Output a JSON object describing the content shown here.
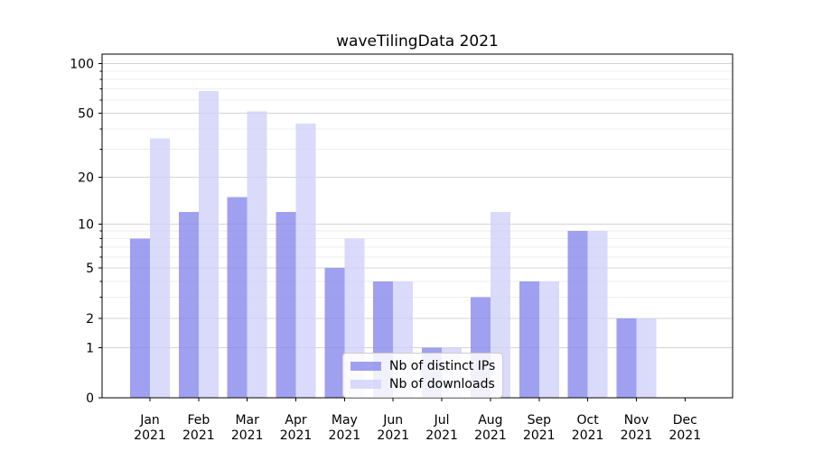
{
  "title": "waveTilingData 2021",
  "chart_data": {
    "type": "bar",
    "title": "waveTilingData 2021",
    "xlabel": "",
    "ylabel": "",
    "y_scale": "log1p",
    "ylim": [
      0,
      114
    ],
    "y_ticks": [
      0,
      1,
      2,
      5,
      10,
      20,
      50,
      100
    ],
    "y_minor_ticks": [
      3,
      4,
      6,
      7,
      8,
      9,
      30,
      40,
      60,
      70,
      80,
      90
    ],
    "grid": "horizontal major and minor gridlines",
    "legend_position": "lower center inside plot",
    "categories": [
      {
        "month": "Jan",
        "year": "2021"
      },
      {
        "month": "Feb",
        "year": "2021"
      },
      {
        "month": "Mar",
        "year": "2021"
      },
      {
        "month": "Apr",
        "year": "2021"
      },
      {
        "month": "May",
        "year": "2021"
      },
      {
        "month": "Jun",
        "year": "2021"
      },
      {
        "month": "Jul",
        "year": "2021"
      },
      {
        "month": "Aug",
        "year": "2021"
      },
      {
        "month": "Sep",
        "year": "2021"
      },
      {
        "month": "Oct",
        "year": "2021"
      },
      {
        "month": "Nov",
        "year": "2021"
      },
      {
        "month": "Dec",
        "year": "2021"
      }
    ],
    "series": [
      {
        "name": "Nb of distinct IPs",
        "color": "#8b8bed",
        "opacity": 0.82,
        "values": [
          8,
          12,
          15,
          12,
          5,
          4,
          1,
          3,
          4,
          9,
          2,
          0
        ]
      },
      {
        "name": "Nb of downloads",
        "color": "#d2d2f9",
        "opacity": 0.82,
        "values": [
          35,
          68,
          51,
          43,
          8,
          4,
          1,
          12,
          4,
          9,
          2,
          0
        ]
      }
    ]
  }
}
